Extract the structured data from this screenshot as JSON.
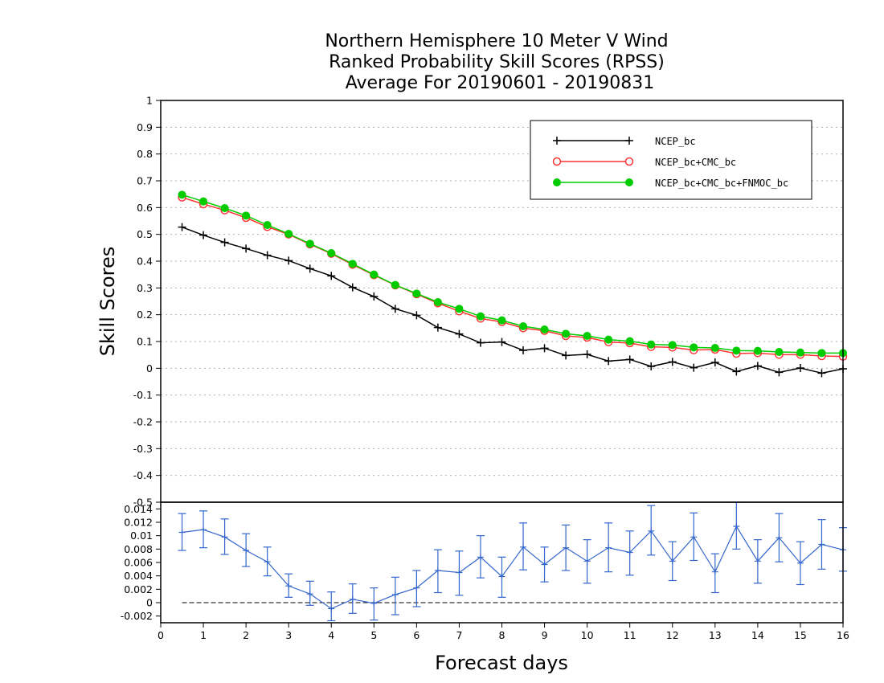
{
  "title_lines": [
    "Northern Hemisphere 10 Meter V Wind",
    "Ranked Probability Skill Scores (RPSS)",
    "Average For 20190601 - 20190831"
  ],
  "colors": {
    "ncep": "#000000",
    "ncep_cmc": "#ff3333",
    "ncep_cmc_fnmoc": "#00cc00",
    "diff": "#3366cc"
  },
  "chart_data": [
    {
      "type": "line",
      "title": "Northern Hemisphere 10 Meter V Wind Ranked Probability Skill Scores (RPSS) Average For 20190601 - 20190831",
      "xlabel": "",
      "ylabel": "Skill Scores",
      "xlim": [
        0,
        16
      ],
      "ylim": [
        -0.5,
        1
      ],
      "yticks": [
        1,
        0.9,
        0.8,
        0.7,
        0.6,
        0.5,
        0.4,
        0.3,
        0.2,
        0.1,
        0,
        -0.1,
        -0.2,
        -0.3,
        -0.4,
        -0.5
      ],
      "ytick_labels": [
        "1",
        "0.9",
        "0.8",
        "0.7",
        "0.6",
        "0.5",
        "0.4",
        "0.3",
        "0.2",
        "0.1",
        "0",
        "-0.1",
        "-0.2",
        "-0.3",
        "-0.4",
        "-0.5"
      ],
      "grid": true,
      "legend_position": "top-right",
      "x": [
        0.5,
        1,
        1.5,
        2,
        2.5,
        3,
        3.5,
        4,
        4.5,
        5,
        5.5,
        6,
        6.5,
        7,
        7.5,
        8,
        8.5,
        9,
        9.5,
        10,
        10.5,
        11,
        11.5,
        12,
        12.5,
        13,
        13.5,
        14,
        14.5,
        15,
        15.5,
        16
      ],
      "series": [
        {
          "name": "NCEP_bc",
          "marker": "plus",
          "values": [
            0.527,
            0.497,
            0.47,
            0.447,
            0.422,
            0.402,
            0.372,
            0.345,
            0.302,
            0.268,
            0.222,
            0.198,
            0.152,
            0.128,
            0.095,
            0.098,
            0.067,
            0.075,
            0.048,
            0.052,
            0.027,
            0.033,
            0.007,
            0.024,
            0.002,
            0.022,
            -0.012,
            0.009,
            -0.015,
            0.001,
            -0.018,
            -0.002
          ]
        },
        {
          "name": "NCEP_bc+CMC_bc",
          "marker": "open-circle",
          "values": [
            0.638,
            0.613,
            0.59,
            0.562,
            0.528,
            0.5,
            0.463,
            0.428,
            0.387,
            0.348,
            0.31,
            0.277,
            0.243,
            0.213,
            0.186,
            0.173,
            0.15,
            0.14,
            0.121,
            0.115,
            0.098,
            0.094,
            0.08,
            0.078,
            0.068,
            0.07,
            0.055,
            0.057,
            0.051,
            0.051,
            0.046,
            0.044
          ]
        },
        {
          "name": "NCEP_bc+CMC_bc+FNMOC_bc",
          "marker": "filled-circle",
          "values": [
            0.648,
            0.623,
            0.598,
            0.57,
            0.535,
            0.502,
            0.465,
            0.43,
            0.39,
            0.35,
            0.311,
            0.279,
            0.247,
            0.222,
            0.194,
            0.179,
            0.157,
            0.145,
            0.129,
            0.121,
            0.107,
            0.101,
            0.089,
            0.087,
            0.078,
            0.076,
            0.066,
            0.065,
            0.061,
            0.059,
            0.057,
            0.057
          ]
        }
      ]
    },
    {
      "type": "line",
      "title": "",
      "xlabel": "Forecast days",
      "ylabel": "",
      "xlim": [
        0,
        16
      ],
      "ylim": [
        -0.003,
        0.015
      ],
      "xticks": [
        0,
        1,
        2,
        3,
        4,
        5,
        6,
        7,
        8,
        9,
        10,
        11,
        12,
        13,
        14,
        15,
        16
      ],
      "yticks": [
        0.014,
        0.012,
        0.01,
        0.008,
        0.006,
        0.004,
        0.002,
        0,
        -0.002
      ],
      "ytick_labels": [
        "0.014",
        "0.012",
        "0.01",
        "0.008",
        "0.006",
        "0.004",
        "0.002",
        "0",
        "-0.002"
      ],
      "reference_line": 0,
      "x": [
        0.5,
        1,
        1.5,
        2,
        2.5,
        3,
        3.5,
        4,
        4.5,
        5,
        5.5,
        6,
        6.5,
        7,
        7.5,
        8,
        8.5,
        9,
        9.5,
        10,
        10.5,
        11,
        11.5,
        12,
        12.5,
        13,
        13.5,
        14,
        14.5,
        15,
        15.5,
        16
      ],
      "series": [
        {
          "values": [
            0.0105,
            0.0109,
            0.0098,
            0.0078,
            0.0061,
            0.0025,
            0.0013,
            -0.0009,
            0.0005,
            -0.0001,
            0.0012,
            0.0022,
            0.0048,
            0.0045,
            0.0068,
            0.0039,
            0.0083,
            0.0057,
            0.0082,
            0.0062,
            0.0082,
            0.0075,
            0.0107,
            0.0062,
            0.0098,
            0.0046,
            0.0114,
            0.0062,
            0.0097,
            0.0059,
            0.0087,
            0.0079
          ],
          "error_low": [
            0.0078,
            0.0082,
            0.0072,
            0.0054,
            0.004,
            0.0008,
            -0.0004,
            -0.0027,
            -0.0016,
            -0.0026,
            -0.0018,
            -0.0006,
            0.0015,
            0.0011,
            0.0037,
            0.0008,
            0.0049,
            0.0031,
            0.0048,
            0.0029,
            0.0046,
            0.0041,
            0.0071,
            0.0033,
            0.0063,
            0.0015,
            0.008,
            0.0029,
            0.0061,
            0.0027,
            0.005,
            0.0047
          ],
          "error_high": [
            0.0133,
            0.0137,
            0.0125,
            0.0103,
            0.0083,
            0.0043,
            0.0032,
            0.0016,
            0.0028,
            0.0022,
            0.0038,
            0.0048,
            0.0079,
            0.0077,
            0.01,
            0.0068,
            0.0119,
            0.0083,
            0.0116,
            0.0094,
            0.0119,
            0.0107,
            0.0145,
            0.0091,
            0.0134,
            0.0073,
            0.0152,
            0.0094,
            0.0133,
            0.0091,
            0.0124,
            0.0112
          ]
        }
      ]
    }
  ]
}
